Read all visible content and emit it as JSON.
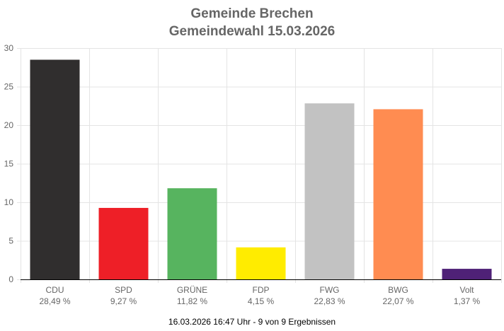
{
  "chart_data": {
    "type": "bar",
    "title": "Gemeinde Brechen",
    "subtitle": "Gemeindewahl 15.03.2026",
    "categories": [
      "CDU",
      "SPD",
      "GRÜNE",
      "FDP",
      "FWG",
      "BWG",
      "Volt"
    ],
    "values": [
      28.49,
      9.27,
      11.82,
      4.15,
      22.83,
      22.07,
      1.37
    ],
    "value_labels": [
      "28,49 %",
      "9,27 %",
      "11,82 %",
      "4,15 %",
      "22,83 %",
      "22,07 %",
      "1,37 %"
    ],
    "colors": [
      "#302e2e",
      "#ee1f27",
      "#57b45f",
      "#ffec00",
      "#c2c2c2",
      "#ff8c51",
      "#4f2177"
    ],
    "ylim": [
      0,
      30
    ],
    "yticks": [
      0,
      5,
      10,
      15,
      20,
      25,
      30
    ],
    "grid": true,
    "footer": "16.03.2026 16:47 Uhr - 9 von 9 Ergebnissen"
  }
}
